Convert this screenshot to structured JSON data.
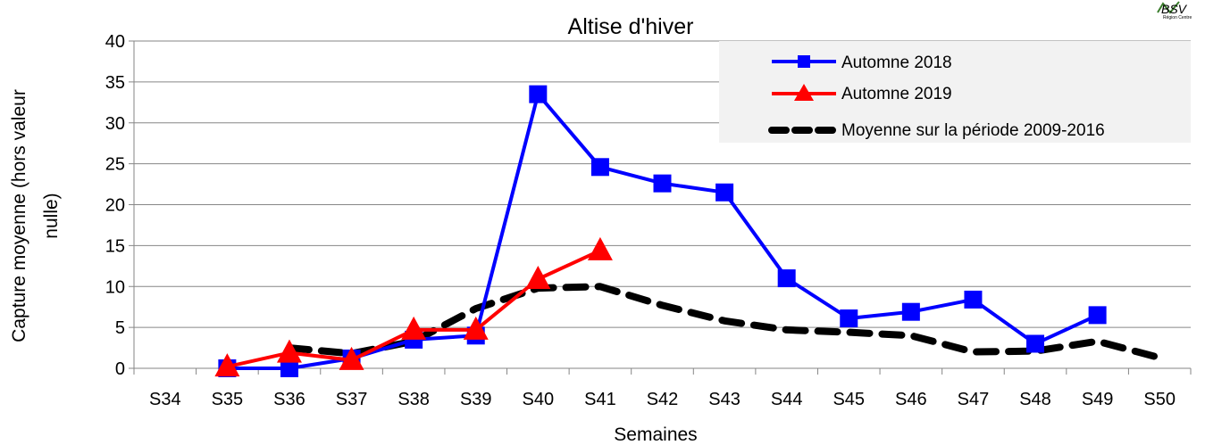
{
  "chart_data": {
    "type": "line",
    "title": "Altise d'hiver",
    "xlabel": "Semaines",
    "ylabel_line1": "Capture moyenne (hors valeur",
    "ylabel_line2": "nulle)",
    "ylim": [
      0,
      40
    ],
    "ytick_step": 5,
    "yticks": [
      "0",
      "5",
      "10",
      "15",
      "20",
      "25",
      "30",
      "35",
      "40"
    ],
    "grid": true,
    "legend_position": "top-right",
    "categories": [
      "S34",
      "S35",
      "S36",
      "S37",
      "S38",
      "S39",
      "S40",
      "S41",
      "S42",
      "S43",
      "S44",
      "S45",
      "S46",
      "S47",
      "S48",
      "S49",
      "S50"
    ],
    "series": [
      {
        "name": "Automne 2018",
        "color": "#0000ff",
        "marker": "square",
        "style": "solid",
        "values": [
          null,
          0,
          0,
          1.2,
          3.5,
          4,
          33.5,
          24.6,
          22.6,
          21.5,
          11,
          6.1,
          6.9,
          8.4,
          3,
          6.5,
          null
        ]
      },
      {
        "name": "Automne 2019",
        "color": "#ff0000",
        "marker": "triangle",
        "style": "solid",
        "values": [
          null,
          0.2,
          1.9,
          1,
          4.7,
          4.7,
          10.9,
          14.4,
          null,
          null,
          null,
          null,
          null,
          null,
          null,
          null,
          null
        ]
      },
      {
        "name": "Moyenne sur la période 2009-2016",
        "color": "#000000",
        "marker": "none",
        "style": "dashed",
        "values": [
          null,
          null,
          2.5,
          1.8,
          3.3,
          7.3,
          9.8,
          10,
          7.7,
          5.8,
          4.7,
          4.4,
          4,
          2,
          2.1,
          3.3,
          1.3
        ]
      }
    ]
  },
  "logo": {
    "text": "BSV",
    "subtext": "Région Centre",
    "icon": "bsv-logo-icon"
  }
}
